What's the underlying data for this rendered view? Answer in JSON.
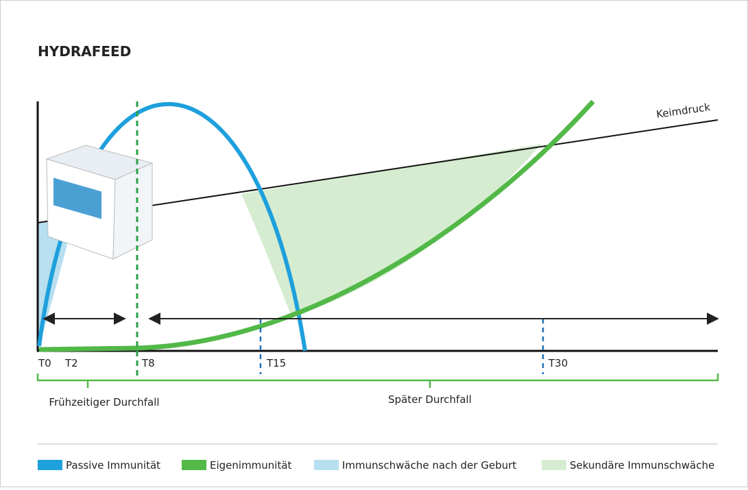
{
  "header": {
    "title": "HYDRAFEED"
  },
  "curves": {
    "pressure_label": "Keimdruck"
  },
  "time_points": [
    "T0",
    "T2",
    "T8",
    "T15",
    "T30"
  ],
  "phases": [
    "Frühzeitiger Durchfall",
    "Später Durchfall"
  ],
  "legend": [
    "Passive Immunität",
    "Eigenimmunität",
    "Immunschwäche nach der Geburt",
    "Sekundäre Immunschwäche"
  ]
}
